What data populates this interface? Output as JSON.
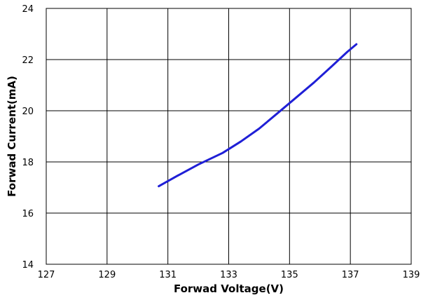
{
  "chart_data": {
    "type": "line",
    "title": "",
    "xlabel": "Forwad Voltage(V)",
    "ylabel": "Forwad Current(mA)",
    "xlim": [
      127,
      139
    ],
    "ylim": [
      14,
      24
    ],
    "xticks": [
      "127",
      "129",
      "131",
      "133",
      "135",
      "137",
      "139"
    ],
    "yticks": [
      "14",
      "16",
      "18",
      "20",
      "22",
      "24"
    ],
    "grid": true,
    "legend": "none",
    "series": [
      {
        "color": "#1f1fd6",
        "x": [
          130.7,
          131.3,
          132.0,
          132.8,
          133.4,
          134.0,
          134.6,
          135.2,
          135.8,
          136.4,
          136.9,
          137.2
        ],
        "y": [
          17.05,
          17.45,
          17.9,
          18.35,
          18.8,
          19.3,
          19.9,
          20.5,
          21.1,
          21.75,
          22.3,
          22.6
        ]
      }
    ]
  }
}
